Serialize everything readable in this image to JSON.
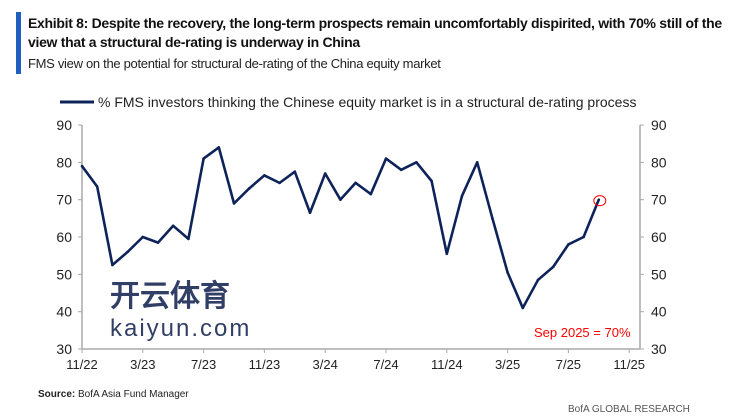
{
  "title": "Exhibit 8: Despite the recovery, the long-term prospects remain uncomfortably dispirited, with 70% still of the view that a structural de-rating is underway in China",
  "subtitle": "FMS view on the potential for structural de-rating of the China equity market",
  "source_label": "Source:",
  "source_text": "BofA Asia Fund Manager",
  "brand": "BofA GLOBAL RESEARCH",
  "watermark": {
    "cn": "开云体育",
    "url": "kaiyun.com"
  },
  "chart_data": {
    "type": "line",
    "title": "",
    "legend": "top",
    "grid": false,
    "ylim": [
      30,
      90
    ],
    "yticks": [
      30,
      40,
      50,
      60,
      70,
      80,
      90
    ],
    "xticks": [
      "11/22",
      "3/23",
      "7/23",
      "11/23",
      "3/24",
      "7/24",
      "11/24",
      "3/25",
      "7/25",
      "11/25"
    ],
    "series": [
      {
        "name": "% FMS investors thinking the Chinese equity market is in a structural de-rating process",
        "color": "#0d2359",
        "x": [
          "11/22",
          "12/22",
          "1/23",
          "2/23",
          "3/23",
          "4/23",
          "5/23",
          "6/23",
          "7/23",
          "8/23",
          "9/23",
          "10/23",
          "11/23",
          "12/23",
          "1/24",
          "2/24",
          "3/24",
          "4/24",
          "5/24",
          "6/24",
          "7/24",
          "8/24",
          "9/24",
          "10/24",
          "11/24",
          "12/24",
          "1/25",
          "2/25",
          "3/25",
          "4/25",
          "5/25",
          "6/25",
          "7/25",
          "8/25",
          "9/25"
        ],
        "values": [
          79,
          73.5,
          52.5,
          56,
          60,
          58.5,
          63,
          59.5,
          81,
          84,
          69,
          73,
          76.5,
          74.5,
          77.5,
          66.5,
          77,
          70,
          74.5,
          71.5,
          81,
          78,
          80,
          75,
          55.5,
          71,
          80,
          65,
          50.5,
          41,
          48.5,
          52,
          58,
          60,
          70
        ]
      }
    ],
    "annotation": {
      "text": "Sep 2025 = 70%",
      "color": "#ff0000"
    }
  }
}
